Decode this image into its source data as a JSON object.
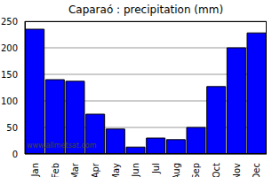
{
  "chart_data": {
    "type": "bar",
    "title": "Caparaó : precipitation (mm)",
    "categories": [
      "Jan",
      "Feb",
      "Mar",
      "Apr",
      "May",
      "Jun",
      "Jul",
      "Aug",
      "Sep",
      "Oct",
      "Nov",
      "Dec"
    ],
    "values": [
      235,
      140,
      137,
      75,
      47,
      13,
      30,
      27,
      50,
      127,
      200,
      228
    ],
    "color": "#0000ff",
    "ylim": [
      0,
      250
    ],
    "yticks": [
      0,
      50,
      100,
      150,
      200,
      250
    ],
    "grid": true,
    "annotations": [
      "www.allmetsat.com"
    ]
  }
}
